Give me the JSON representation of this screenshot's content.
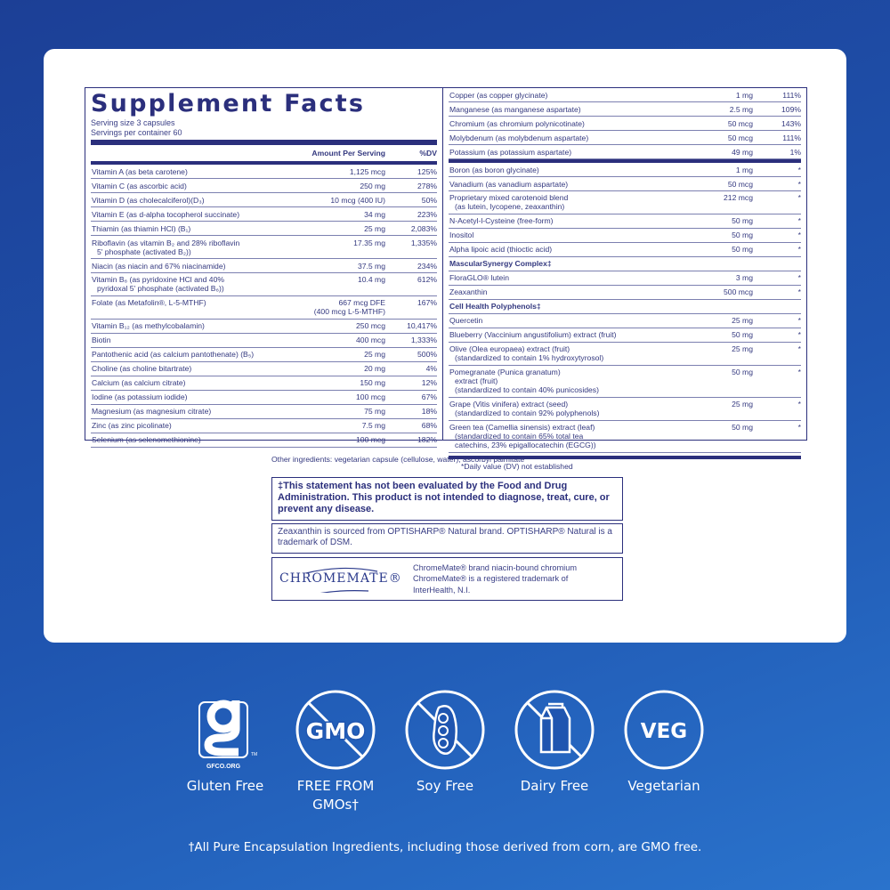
{
  "title": "Supplement Facts",
  "serving_size": "Serving size  3 capsules",
  "servings_per_container": "Servings per container  60",
  "header": {
    "amount": "Amount Per Serving",
    "dv": "%DV"
  },
  "left_rows": [
    {
      "n": "Vitamin A (as beta carotene)",
      "a": "1,125 mcg",
      "d": "125%"
    },
    {
      "n": "Vitamin C (as ascorbic acid)",
      "a": "250 mg",
      "d": "278%"
    },
    {
      "n": "Vitamin D (as cholecalciferol)(D₃)",
      "a": "10 mcg (400 IU)",
      "d": "50%"
    },
    {
      "n": "Vitamin E (as d-alpha tocopherol succinate)",
      "a": "34 mg",
      "d": "223%"
    },
    {
      "n": "Thiamin (as thiamin HCl) (B₁)",
      "a": "25 mg",
      "d": "2,083%"
    },
    {
      "n": "Riboflavin (as vitamin B₂ and 28% riboflavin",
      "n2": "5' phosphate (activated B₂))",
      "a": "17.35 mg",
      "d": "1,335%"
    },
    {
      "n": "Niacin (as niacin and 67% niacinamide)",
      "a": "37.5 mg",
      "d": "234%"
    },
    {
      "n": "Vitamin B₆ (as pyridoxine HCl and 40%",
      "n2": "pyridoxal 5' phosphate (activated B₆))",
      "a": "10.4 mg",
      "d": "612%"
    },
    {
      "n": "Folate (as Metafolin®, L-5-MTHF)",
      "a": "667 mcg DFE",
      "a2": "(400 mcg L-5-MTHF)",
      "d": "167%"
    },
    {
      "n": "Vitamin B₁₂ (as methylcobalamin)",
      "a": "250 mcg",
      "d": "10,417%"
    },
    {
      "n": "Biotin",
      "a": "400 mcg",
      "d": "1,333%"
    },
    {
      "n": "Pantothenic acid (as calcium pantothenate) (B₅)",
      "a": "25 mg",
      "d": "500%"
    },
    {
      "n": "Choline (as choline bitartrate)",
      "a": "20 mg",
      "d": "4%"
    },
    {
      "n": "Calcium (as calcium citrate)",
      "a": "150 mg",
      "d": "12%"
    },
    {
      "n": "Iodine (as potassium iodide)",
      "a": "100 mcg",
      "d": "67%"
    },
    {
      "n": "Magnesium (as magnesium citrate)",
      "a": "75 mg",
      "d": "18%"
    },
    {
      "n": "Zinc (as zinc picolinate)",
      "a": "7.5 mg",
      "d": "68%"
    },
    {
      "n": "Selenium (as selenomethionine)",
      "a": "100 mcg",
      "d": "182%"
    }
  ],
  "right_rows_top": [
    {
      "n": "Copper (as copper glycinate)",
      "a": "1 mg",
      "d": "111%"
    },
    {
      "n": "Manganese (as manganese aspartate)",
      "a": "2.5 mg",
      "d": "109%"
    },
    {
      "n": "Chromium (as chromium polynicotinate)",
      "a": "50 mcg",
      "d": "143%"
    },
    {
      "n": "Molybdenum (as molybdenum aspartate)",
      "a": "50 mcg",
      "d": "111%"
    },
    {
      "n": "Potassium (as potassium aspartate)",
      "a": "49 mg",
      "d": "1%"
    }
  ],
  "right_rows": [
    {
      "n": "Boron (as boron glycinate)",
      "a": "1 mg",
      "d": "*"
    },
    {
      "n": "Vanadium (as vanadium aspartate)",
      "a": "50 mcg",
      "d": "*"
    },
    {
      "n": "Proprietary mixed carotenoid blend",
      "n2": "(as lutein, lycopene, zeaxanthin)",
      "a": "212 mcg",
      "d": "*"
    },
    {
      "n": "N-Acetyl-l-Cysteine (free-form)",
      "a": "50 mg",
      "d": "*"
    },
    {
      "n": "Inositol",
      "a": "50 mg",
      "d": "*"
    },
    {
      "n": "Alpha lipoic acid (thioctic acid)",
      "a": "50 mg",
      "d": "*"
    },
    {
      "n": "MascularSynergy Complex‡",
      "sec": true
    },
    {
      "n": "FloraGLO® lutein",
      "a": "3 mg",
      "d": "*"
    },
    {
      "n": "Zeaxanthin",
      "a": "500 mcg",
      "d": "*"
    },
    {
      "n": "Cell Health Polyphenols‡",
      "sec": true
    },
    {
      "n": "Quercetin",
      "a": "25 mg",
      "d": "*"
    },
    {
      "n": "Blueberry (Vaccinium angustifolium) extract (fruit)",
      "a": "50 mg",
      "d": "*"
    },
    {
      "n": "Olive (Olea europaea) extract (fruit)",
      "n2": "(standardized to contain 1% hydroxytyrosol)",
      "a": "25 mg",
      "d": "*"
    },
    {
      "n": "Pomegranate (Punica granatum)",
      "n2": "extract (fruit)",
      "n3": "(standardized to contain 40% punicosides)",
      "a": "50 mg",
      "d": "*"
    },
    {
      "n": "Grape (Vitis vinifera) extract (seed)",
      "n2": "(standardized to contain 92% polyphenols)",
      "a": "25 mg",
      "d": "*"
    },
    {
      "n": "Green tea (Camellia sinensis) extract (leaf)",
      "n2": "(standardized to contain 65% total tea",
      "n3": "catechins, 23% epigallocatechin (EGCG))",
      "a": "50 mg",
      "d": "*"
    }
  ],
  "dv_note": "*Daily value (DV) not established",
  "other_ingredients": "Other ingredients: vegetarian capsule (cellulose, water), ascorbyl palmitate",
  "fda_statement": "‡This statement has not been evaluated by the Food and Drug Administration. This product is not intended to diagnose, treat, cure, or prevent any disease.",
  "zeaxanthin_note": "Zeaxanthin is sourced from OPTISHARP® Natural brand. OPTISHARP® Natural is a trademark of DSM.",
  "chromemate": {
    "logo": "CHROMEMATE®",
    "line1": "ChromeMate® brand niacin-bound chromium",
    "line2": "ChromeMate® is a registered trademark of",
    "line3": "InterHealth, N.I."
  },
  "badges": [
    {
      "icon": "gluten-free-gfco-icon",
      "label": "Gluten Free",
      "logo_text": "GFCO.ORG"
    },
    {
      "icon": "no-gmo-icon",
      "label": "FREE FROM",
      "label2": "GMOs†",
      "icon_text": "GMO"
    },
    {
      "icon": "no-soy-icon",
      "label": "Soy Free"
    },
    {
      "icon": "no-dairy-icon",
      "label": "Dairy Free"
    },
    {
      "icon": "veg-icon",
      "label": "Vegetarian",
      "icon_text": "VEG"
    }
  ],
  "gmo_footnote": "†All Pure Encapsulation Ingredients, including those derived from corn, are GMO free.",
  "colors": {
    "navy": "#2b2f7c",
    "background_blue": "#1f55b0",
    "card": "#ffffff"
  }
}
